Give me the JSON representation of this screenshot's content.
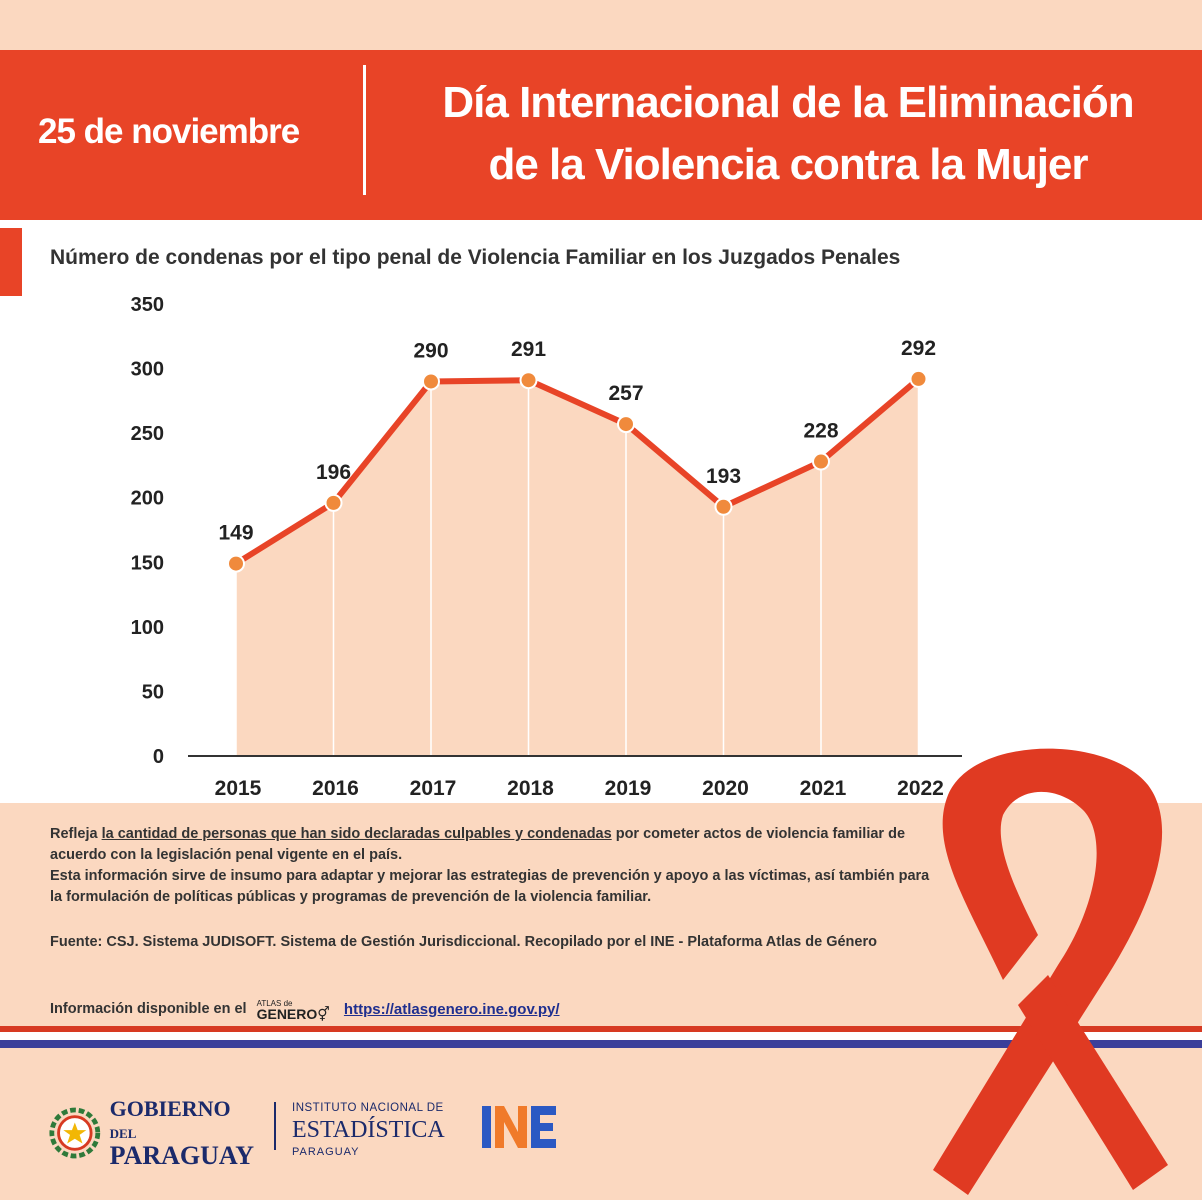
{
  "header": {
    "date": "25 de noviembre",
    "title_line1": "Día Internacional de la Eliminación",
    "title_line2": "de la Violencia contra la Mujer",
    "color": "#e84427"
  },
  "chart_title": "Número de condenas por el tipo penal de Violencia Familiar en los Juzgados Penales",
  "chart_data": {
    "type": "area",
    "title": "Número de condenas por el tipo penal de Violencia Familiar en los Juzgados Penales",
    "xlabel": "",
    "ylabel": "",
    "categories": [
      "2015",
      "2016",
      "2017",
      "2018",
      "2019",
      "2020",
      "2021",
      "2022"
    ],
    "values": [
      149,
      196,
      290,
      291,
      257,
      193,
      228,
      292
    ],
    "ylim": [
      0,
      350
    ],
    "yticks": [
      0,
      50,
      100,
      150,
      200,
      250,
      300,
      350
    ],
    "grid": false,
    "line_color": "#e84427",
    "fill_color": "#fbd8c0",
    "marker_color": "#f08a3c"
  },
  "info": {
    "p1_pre": "Refleja ",
    "p1_underline": "la cantidad de personas que han sido declaradas culpables y condenadas",
    "p1_post": " por cometer actos de violencia familiar de acuerdo con la legislación penal vigente en el país.",
    "p2": "Esta información sirve de insumo para adaptar y mejorar las estrategias de prevención y apoyo a las víctimas, así también para la formulación de políticas públicas y programas de prevención de la violencia familiar."
  },
  "source": "Fuente: CSJ. Sistema JUDISOFT. Sistema de Gestión Jurisdiccional. Recopilado por el INE - Plataforma Atlas de Género",
  "availability": {
    "label": "Información disponible en el",
    "atlas_small": "ATLAS de",
    "atlas_big": "GENERO",
    "url": "https://atlasgenero.ine.gov.py/"
  },
  "footer": {
    "gob_line1": "GOBIERNO",
    "gob_del": "DEL",
    "gob_line2": "PARAGUAY",
    "ine_line1": "INSTITUTO NACIONAL DE",
    "ine_line2": "ESTADÍSTICA",
    "ine_line3": "PARAGUAY",
    "ine_logo": "INE"
  },
  "colors": {
    "background": "#fbd8c0",
    "stripe_red": "#d73a22",
    "stripe_blue": "#3b3f9a",
    "ribbon": "#e03a22"
  }
}
